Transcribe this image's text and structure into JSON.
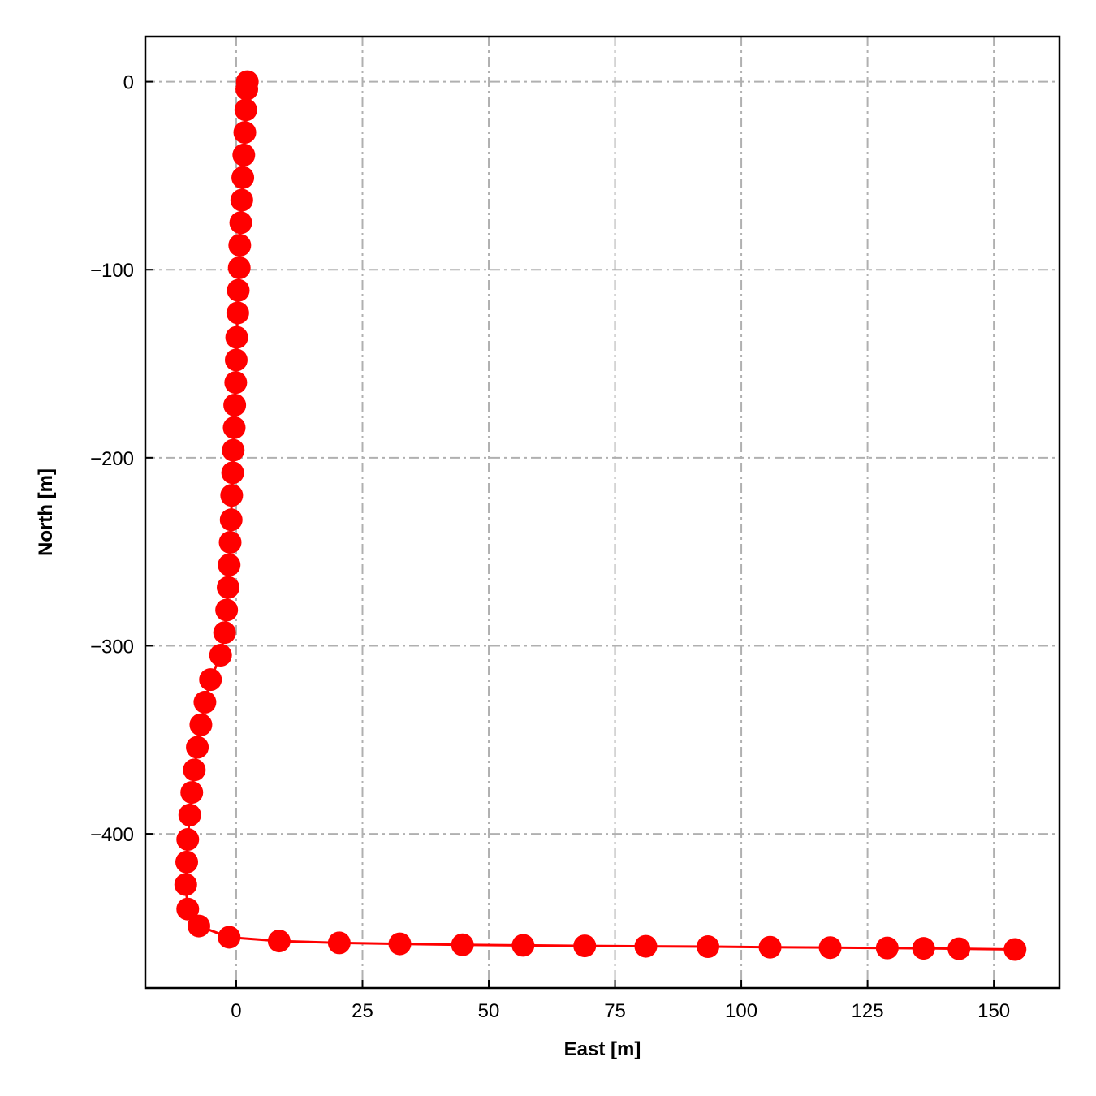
{
  "chart_data": {
    "type": "line",
    "title": "",
    "xlabel": "East [m]",
    "ylabel": "North [m]",
    "xlim": [
      -18,
      163
    ],
    "ylim": [
      -482,
      24
    ],
    "xticks": [
      0,
      25,
      50,
      75,
      100,
      125,
      150
    ],
    "yticks": [
      0,
      -100,
      -200,
      -300,
      -400
    ],
    "xtick_labels": [
      "0",
      "25",
      "50",
      "75",
      "100",
      "125",
      "150"
    ],
    "ytick_labels": [
      "0",
      "−100",
      "−200",
      "−300",
      "−400"
    ],
    "grid": true,
    "series": [
      {
        "color": "#ff0000",
        "marker": "circle",
        "x": [
          2.2,
          2.1,
          1.9,
          1.7,
          1.5,
          1.3,
          1.1,
          0.9,
          0.7,
          0.6,
          0.4,
          0.3,
          0.1,
          0.0,
          -0.1,
          -0.3,
          -0.4,
          -0.6,
          -0.7,
          -0.9,
          -1.0,
          -1.2,
          -1.4,
          -1.6,
          -1.9,
          -2.3,
          -3.1,
          -5.1,
          -6.2,
          -7.0,
          -7.7,
          -8.3,
          -8.8,
          -9.2,
          -9.6,
          -9.8,
          -10.0,
          -9.6,
          -7.4,
          -1.4,
          8.5,
          20.4,
          32.4,
          44.8,
          56.8,
          69.0,
          81.1,
          93.4,
          105.7,
          117.6,
          128.9,
          136.1,
          143.1,
          154.2
        ],
        "y": [
          0,
          -4,
          -15,
          -27,
          -39,
          -51,
          -63,
          -75,
          -87,
          -99,
          -111,
          -123,
          -136,
          -148,
          -160,
          -172,
          -184,
          -196,
          -208,
          -220,
          -233,
          -245,
          -257,
          -269,
          -281,
          -293,
          -305,
          -318,
          -330,
          -342,
          -354,
          -366,
          -378,
          -390,
          -403,
          -415,
          -427,
          -440,
          -449,
          -455,
          -457,
          -458,
          -458.5,
          -459,
          -459.3,
          -459.6,
          -459.8,
          -460.0,
          -460.3,
          -460.5,
          -460.7,
          -460.9,
          -461.1,
          -461.5
        ]
      }
    ]
  }
}
